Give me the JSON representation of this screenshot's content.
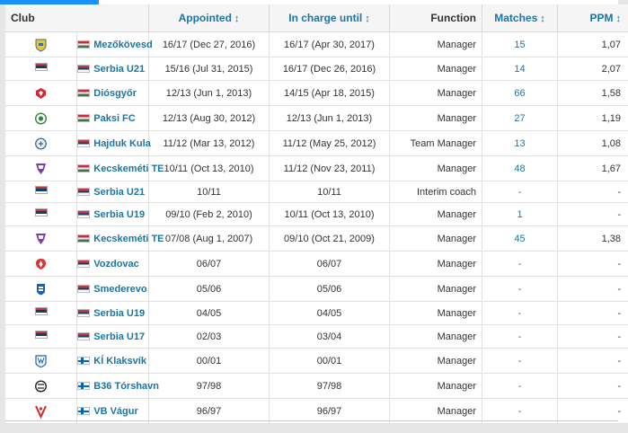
{
  "header": {
    "club": "Club",
    "appointed": "Appointed",
    "in_charge_until": "In charge until",
    "function": "Function",
    "matches": "Matches",
    "ppm": "PPM",
    "sort_glyph": "↕"
  },
  "rows": [
    {
      "crest": "mezokovesd-crest-icon",
      "flag": "hungary-flag-icon",
      "club": "Mezőkövesd",
      "appointed": "16/17 (Dec 27, 2016)",
      "until": "16/17 (Apr 30, 2017)",
      "function": "Manager",
      "matches": "15",
      "ppm": "1,07"
    },
    {
      "crest": "serbia-crest-icon",
      "flag": "serbia-flag-icon",
      "club": "Serbia U21",
      "appointed": "15/16 (Jul 31, 2015)",
      "until": "16/17 (Dec 26, 2016)",
      "function": "Manager",
      "matches": "14",
      "ppm": "2,07"
    },
    {
      "crest": "diosgyor-crest-icon",
      "flag": "hungary-flag-icon",
      "club": "Diósgyőr",
      "appointed": "12/13 (Jun 1, 2013)",
      "until": "14/15 (Apr 18, 2015)",
      "function": "Manager",
      "matches": "66",
      "ppm": "1,58"
    },
    {
      "crest": "paksi-crest-icon",
      "flag": "hungary-flag-icon",
      "club": "Paksi FC",
      "appointed": "12/13 (Aug 30, 2012)",
      "until": "12/13 (Jun 1, 2013)",
      "function": "Manager",
      "matches": "27",
      "ppm": "1,19"
    },
    {
      "crest": "hajduk-kula-crest-icon",
      "flag": "serbia-flag-icon",
      "club": "Hajduk Kula",
      "appointed": "11/12 (Mar 13, 2012)",
      "until": "11/12 (May 25, 2012)",
      "function": "Team Manager",
      "matches": "13",
      "ppm": "1,08"
    },
    {
      "crest": "kecskemeti-crest-icon",
      "flag": "hungary-flag-icon",
      "club": "Kecskeméti TE",
      "appointed": "10/11 (Oct 13, 2010)",
      "until": "11/12 (Nov 23, 2011)",
      "function": "Manager",
      "matches": "48",
      "ppm": "1,67"
    },
    {
      "crest": "serbia-crest-icon",
      "flag": "serbia-flag-icon",
      "club": "Serbia U21",
      "appointed": "10/11",
      "until": "10/11",
      "function": "Interim coach",
      "matches": "-",
      "ppm": "-"
    },
    {
      "crest": "serbia-crest-icon",
      "flag": "serbia-flag-icon",
      "club": "Serbia U19",
      "appointed": "09/10 (Feb 2, 2010)",
      "until": "10/11 (Oct 13, 2010)",
      "function": "Manager",
      "matches": "1",
      "ppm": "-"
    },
    {
      "crest": "kecskemeti-crest-icon",
      "flag": "hungary-flag-icon",
      "club": "Kecskeméti TE",
      "appointed": "07/08 (Aug 1, 2007)",
      "until": "09/10 (Oct 21, 2009)",
      "function": "Manager",
      "matches": "45",
      "ppm": "1,38"
    },
    {
      "crest": "vozdovac-crest-icon",
      "flag": "serbia-flag-icon",
      "club": "Vozdovac",
      "appointed": "06/07",
      "until": "06/07",
      "function": "Manager",
      "matches": "-",
      "ppm": "-"
    },
    {
      "crest": "smederevo-crest-icon",
      "flag": "serbia-flag-icon",
      "club": "Smederevo",
      "appointed": "05/06",
      "until": "05/06",
      "function": "Manager",
      "matches": "-",
      "ppm": "-"
    },
    {
      "crest": "serbia-crest-icon",
      "flag": "serbia-flag-icon",
      "club": "Serbia U19",
      "appointed": "04/05",
      "until": "04/05",
      "function": "Manager",
      "matches": "-",
      "ppm": "-"
    },
    {
      "crest": "serbia-crest-icon",
      "flag": "serbia-flag-icon",
      "club": "Serbia U17",
      "appointed": "02/03",
      "until": "03/04",
      "function": "Manager",
      "matches": "-",
      "ppm": "-"
    },
    {
      "crest": "ki-klaksvik-crest-icon",
      "flag": "faroe-flag-icon",
      "club": "KÍ Klaksvík",
      "appointed": "00/01",
      "until": "00/01",
      "function": "Manager",
      "matches": "-",
      "ppm": "-"
    },
    {
      "crest": "b36-crest-icon",
      "flag": "faroe-flag-icon",
      "club": "B36 Tórshavn",
      "appointed": "97/98",
      "until": "97/98",
      "function": "Manager",
      "matches": "-",
      "ppm": "-"
    },
    {
      "crest": "vb-vagur-crest-icon",
      "flag": "faroe-flag-icon",
      "club": "VB Vágur",
      "appointed": "96/97",
      "until": "96/97",
      "function": "Manager",
      "matches": "-",
      "ppm": "-"
    }
  ],
  "colors": {
    "link": "#1d75a3",
    "header_bg": "#f5f5f5",
    "accent": "#1a91ff"
  }
}
